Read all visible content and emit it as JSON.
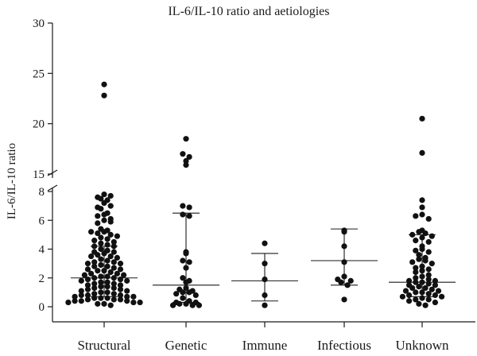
{
  "chart_data": {
    "type": "scatter",
    "title": "IL-6/IL-10 ratio and aetiologies",
    "xlabel": "",
    "ylabel": "IL-6/IL-10 ratio",
    "y_axis_break": {
      "lower_range": [
        0,
        8
      ],
      "upper_range": [
        15,
        30
      ]
    },
    "y_ticks_lower": [
      "0",
      "2",
      "4",
      "6",
      "8"
    ],
    "y_ticks_upper": [
      "15",
      "20",
      "25",
      "30"
    ],
    "grid": false,
    "categories": [
      "Structural",
      "Genetic",
      "Immune",
      "Infectious",
      "Unknown"
    ],
    "series": [
      {
        "category": "Structural",
        "median": 2.0,
        "q1": 0.7,
        "q3": 4.2,
        "values": [
          23.9,
          22.8,
          7.8,
          7.6,
          7.7,
          7.5,
          7.2,
          7.4,
          6.9,
          7.0,
          6.8,
          6.4,
          6.5,
          6.3,
          6.0,
          6.1,
          5.8,
          5.9,
          5.4,
          5.3,
          5.2,
          5.1,
          5.0,
          5.2,
          4.9,
          4.8,
          4.7,
          4.6,
          4.5,
          4.4,
          4.3,
          4.2,
          4.2,
          4.0,
          3.9,
          3.8,
          3.8,
          3.7,
          3.6,
          3.5,
          3.5,
          3.4,
          3.3,
          3.2,
          3.1,
          3.1,
          3.0,
          3.0,
          2.9,
          2.8,
          2.8,
          2.7,
          2.6,
          2.6,
          2.5,
          2.5,
          2.4,
          2.3,
          2.3,
          2.2,
          2.2,
          2.1,
          2.1,
          2.0,
          2.0,
          1.9,
          1.9,
          1.8,
          1.8,
          1.7,
          1.7,
          1.6,
          1.6,
          1.5,
          1.5,
          1.4,
          1.4,
          1.3,
          1.3,
          1.2,
          1.2,
          1.1,
          1.1,
          1.0,
          1.0,
          0.9,
          0.9,
          0.8,
          0.8,
          0.8,
          0.7,
          0.7,
          0.7,
          0.6,
          0.6,
          0.6,
          0.5,
          0.5,
          0.5,
          0.4,
          0.4,
          0.4,
          0.3,
          0.3,
          0.3,
          0.2,
          0.2,
          0.1
        ]
      },
      {
        "category": "Genetic",
        "median": 1.5,
        "q1": 0.3,
        "q3": 6.5,
        "values": [
          18.5,
          17.0,
          16.7,
          16.3,
          15.9,
          7.0,
          6.9,
          6.4,
          6.3,
          3.8,
          3.7,
          3.2,
          3.1,
          2.7,
          2.0,
          1.8,
          1.7,
          1.3,
          1.2,
          1.1,
          1.0,
          1.0,
          0.9,
          0.8,
          0.6,
          0.4,
          0.3,
          0.3,
          0.2,
          0.2,
          0.1,
          0.1,
          0.1
        ]
      },
      {
        "category": "Immune",
        "median": 1.8,
        "q1": 0.4,
        "q3": 3.7,
        "values": [
          4.4,
          3.0,
          1.9,
          0.8,
          0.1
        ]
      },
      {
        "category": "Infectious",
        "median": 3.2,
        "q1": 1.5,
        "q3": 5.4,
        "values": [
          5.3,
          5.2,
          4.2,
          3.1,
          2.1,
          1.9,
          1.8,
          1.7,
          1.5,
          0.5
        ]
      },
      {
        "category": "Unknown",
        "median": 1.7,
        "q1": 0.7,
        "q3": 5.0,
        "values": [
          20.5,
          17.1,
          7.4,
          6.9,
          6.4,
          6.3,
          6.1,
          5.3,
          5.2,
          5.1,
          5.0,
          4.9,
          4.8,
          4.6,
          4.5,
          4.2,
          4.0,
          3.9,
          3.8,
          3.6,
          3.4,
          3.3,
          3.2,
          3.1,
          3.0,
          2.8,
          2.7,
          2.6,
          2.5,
          2.4,
          2.2,
          2.1,
          2.0,
          1.9,
          1.8,
          1.8,
          1.7,
          1.7,
          1.6,
          1.5,
          1.5,
          1.4,
          1.3,
          1.3,
          1.2,
          1.1,
          1.1,
          1.0,
          1.0,
          0.9,
          0.8,
          0.8,
          0.7,
          0.7,
          0.6,
          0.5,
          0.5,
          0.4,
          0.3,
          0.2,
          0.1
        ]
      }
    ]
  }
}
